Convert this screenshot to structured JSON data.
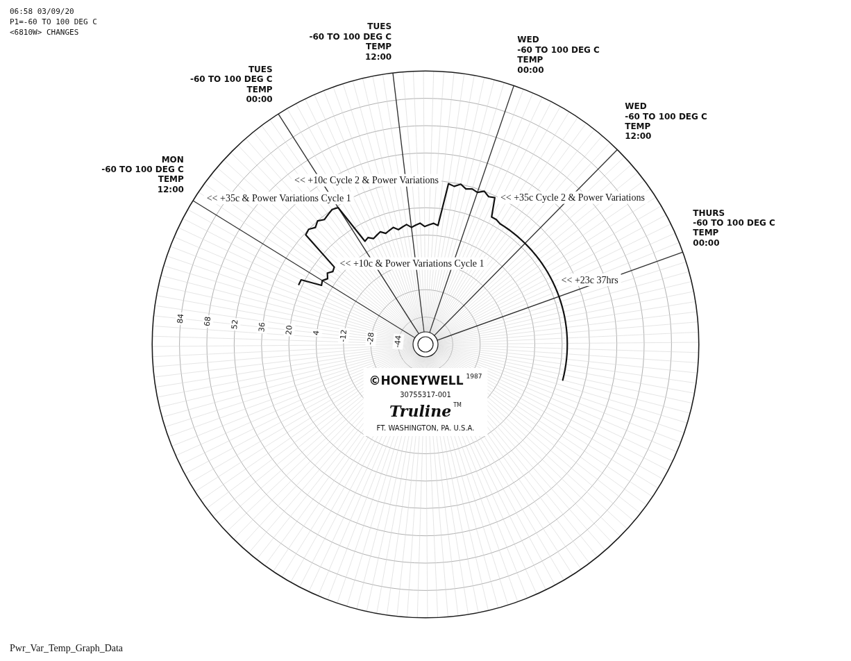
{
  "chart_data": {
    "type": "radar",
    "categories": [
      null,
      null,
      null,
      null,
      null,
      null,
      null,
      null,
      null,
      null,
      null,
      null,
      [
        "MON",
        "-60 TO 100 DEG C",
        "TEMP",
        "12:00"
      ],
      null,
      null,
      null,
      null,
      null,
      null,
      null,
      null,
      null,
      null,
      null,
      [
        "TUES",
        "-60 TO 100 DEG C",
        "TEMP",
        "00:00"
      ],
      null,
      null,
      null,
      null,
      null,
      null,
      null,
      null,
      null,
      null,
      null,
      [
        "TUES",
        "-60 TO 100 DEG C",
        "TEMP",
        "12:00"
      ],
      null,
      null,
      null,
      null,
      null,
      null,
      null,
      null,
      null,
      null,
      null,
      [
        "WED",
        "-60 TO 100 DEG C",
        "TEMP",
        "00:00"
      ],
      null,
      null,
      null,
      null,
      null,
      null,
      null,
      null,
      null,
      null,
      null,
      [
        "WED",
        "-60 TO 100 DEG C",
        "TEMP",
        "12:00"
      ],
      null,
      null,
      null,
      null,
      null,
      null,
      null,
      null,
      null,
      null,
      null,
      [
        "THURS",
        "-60 TO 100 DEG C",
        "TEMP",
        "00:00"
      ],
      null,
      null,
      null,
      null,
      null,
      null,
      null,
      null,
      null,
      null,
      null,
      null,
      null,
      null,
      null,
      null,
      null,
      null,
      null,
      null,
      null,
      null,
      null,
      null,
      null,
      null,
      null,
      null,
      null,
      null,
      null,
      null,
      null,
      null,
      null,
      null,
      null,
      null,
      null,
      null,
      null,
      null,
      null,
      null,
      null,
      null,
      null,
      null,
      null,
      null,
      null,
      null,
      null,
      null,
      null,
      null,
      null,
      null,
      null,
      null,
      null,
      null,
      null,
      null,
      null,
      null,
      null,
      null,
      null,
      null,
      null,
      null,
      null,
      null,
      null,
      null,
      null,
      null,
      null,
      null,
      null,
      null,
      null,
      null,
      null,
      null,
      null,
      null,
      null,
      null,
      null,
      null,
      null,
      null,
      null
    ],
    "values": [
      null,
      null,
      null,
      null,
      null,
      null,
      null,
      null,
      null,
      22,
      22,
      10,
      11,
      9,
      11,
      9,
      10,
      35,
      36,
      34,
      36,
      34,
      35,
      36,
      35,
      10,
      11,
      9,
      10,
      11,
      9,
      10,
      11,
      9,
      10,
      11,
      9,
      10,
      11,
      9,
      10,
      11,
      10,
      35,
      34,
      36,
      34,
      35,
      34,
      36,
      34,
      35,
      24,
      24,
      23,
      23,
      23,
      23,
      23,
      23,
      23,
      23,
      23,
      23,
      23,
      23,
      23,
      23,
      23,
      23,
      23,
      23,
      23,
      23,
      23,
      23,
      23,
      23,
      23,
      23,
      23,
      23,
      23,
      23,
      23,
      23,
      23,
      23,
      23,
      null,
      null,
      null,
      null,
      null,
      null,
      null,
      null,
      null,
      null,
      null,
      null,
      null,
      null,
      null,
      null,
      null,
      null,
      null,
      null,
      null,
      null,
      null,
      null,
      null,
      null,
      null,
      null,
      null,
      null,
      null,
      null,
      null,
      null,
      null,
      null,
      null,
      null,
      null,
      null,
      null,
      null,
      null,
      null,
      null,
      null,
      null,
      null,
      null,
      null,
      null,
      null,
      null,
      null,
      null,
      null,
      null,
      null,
      null,
      null,
      null,
      null,
      null,
      null,
      null,
      null,
      null,
      null,
      null,
      null,
      null,
      null,
      null,
      null,
      null,
      null,
      null,
      null,
      null
    ],
    "color": "#111111",
    "ylim": [
      -60,
      100
    ],
    "yticks": [
      -44,
      -28,
      -12,
      4,
      20,
      36,
      52,
      68,
      84
    ],
    "grid": true,
    "annotations": [
      {
        "text": "<< +10c & Power Variations Cycle 1",
        "hour": 16
      },
      {
        "text": "<< +35c & Power Variations Cycle 1",
        "hour": 18
      },
      {
        "text": "<< +10c Cycle 2 & Power Variations",
        "hour": 42
      },
      {
        "text": "<< +35c Cycle 2 & Power Variations",
        "hour": 51
      },
      {
        "text": "<< +23c 37hrs",
        "hour": 70
      }
    ]
  },
  "brand": {
    "name": "©HONEYWELL",
    "year": "1987",
    "part": "30755317-001",
    "product": "Truline",
    "tm": "TM",
    "place": "FT. WASHINGTON, PA. U.S.A."
  },
  "stamp": [
    "06:58 03/09/20",
    "P1=-60 TO 100 DEG C",
    "<6810W> CHANGES"
  ],
  "caption": "Pwr_Var_Temp_Graph_Data"
}
